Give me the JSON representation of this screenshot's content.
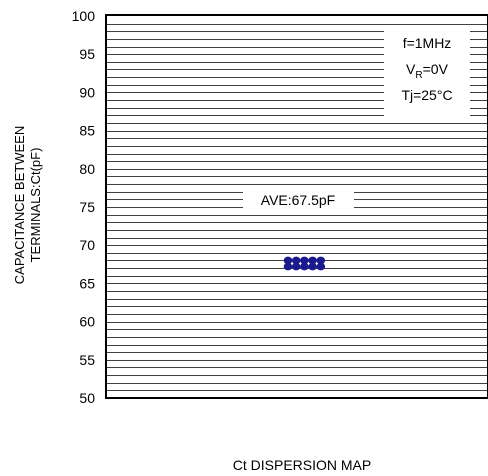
{
  "chart_data": {
    "type": "scatter",
    "title": "Ct DISPERSION MAP",
    "ylabel_line1": "CAPACITANCE BETWEEN",
    "ylabel_line2": "TERMINALS:Ct(pF)",
    "ylim": [
      50,
      100
    ],
    "yticks": [
      "100",
      "95",
      "90",
      "85",
      "80",
      "75",
      "70",
      "65",
      "60",
      "55",
      "50"
    ],
    "grid": true,
    "points_y": [
      68,
      68,
      68,
      68,
      68,
      67.2,
      67.2,
      67.2,
      67.2,
      67.2
    ],
    "point_color": "#1a1a8c",
    "average_label": "AVE:67.5pF",
    "conditions": {
      "freq": "f=1MHz",
      "vr_main": "V",
      "vr_sub": "R",
      "vr_value": "=0V",
      "tj": "Tj=25°C"
    }
  }
}
